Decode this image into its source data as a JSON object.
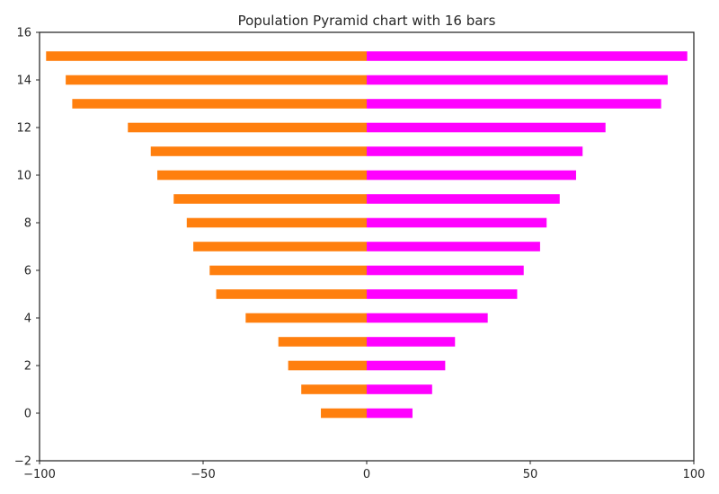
{
  "chart_data": {
    "type": "bar",
    "orientation": "horizontal",
    "title": "Population Pyramid chart with 16 bars",
    "xlabel": "",
    "ylabel": "",
    "xlim": [
      -100,
      100
    ],
    "ylim": [
      -2,
      16
    ],
    "xticks": [
      -100,
      -50,
      0,
      50,
      100
    ],
    "yticks": [
      -2,
      0,
      2,
      4,
      6,
      8,
      10,
      12,
      14,
      16
    ],
    "grid": false,
    "legend": "none",
    "categories": [
      0,
      1,
      2,
      3,
      4,
      5,
      6,
      7,
      8,
      9,
      10,
      11,
      12,
      13,
      14,
      15
    ],
    "series": [
      {
        "color": "#ff7f0e",
        "values": [
          -14,
          -20,
          -24,
          -27,
          -37,
          -46,
          -48,
          -53,
          -55,
          -59,
          -64,
          -66,
          -73,
          -90,
          -92,
          -98
        ]
      },
      {
        "color": "#ff00ff",
        "values": [
          14,
          20,
          24,
          27,
          37,
          46,
          48,
          53,
          55,
          59,
          64,
          66,
          73,
          90,
          92,
          98
        ]
      }
    ]
  }
}
